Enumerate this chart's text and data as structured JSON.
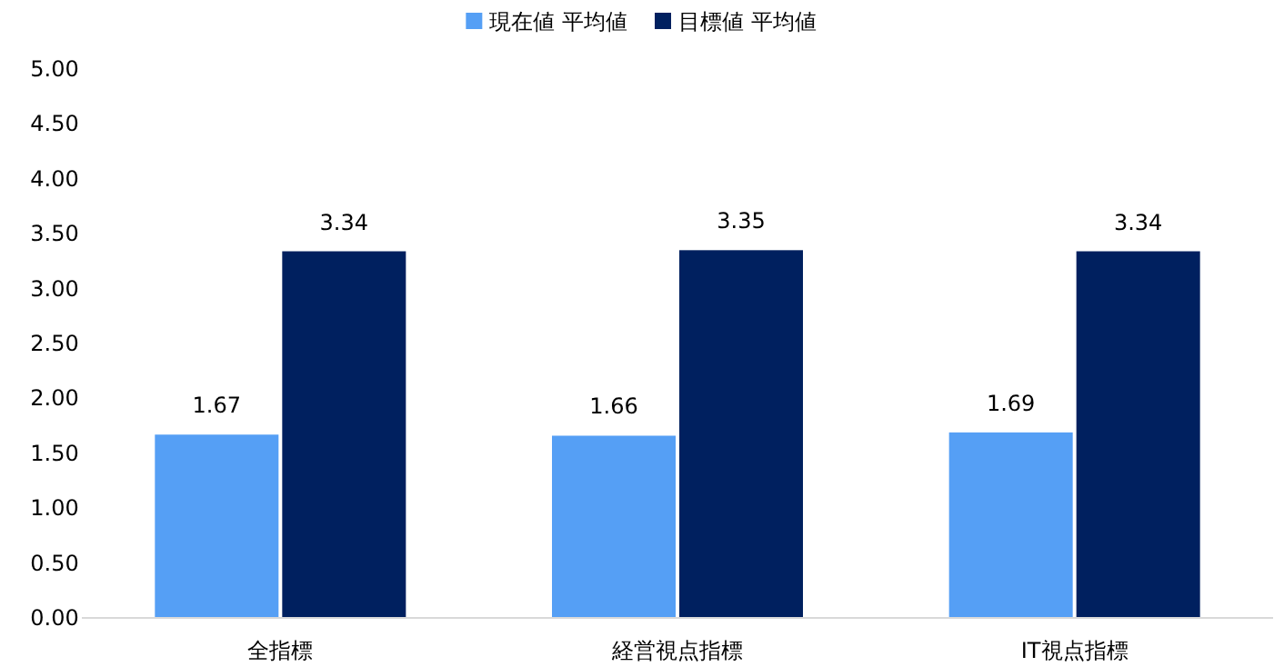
{
  "chart_data": {
    "type": "bar",
    "categories": [
      "全指標",
      "経営視点指標",
      "IT視点指標"
    ],
    "series": [
      {
        "name": "現在値 平均値",
        "color": "#559ff5",
        "values": [
          1.67,
          1.66,
          1.69
        ]
      },
      {
        "name": "目標値 平均値",
        "color": "#00205f",
        "values": [
          3.34,
          3.35,
          3.34
        ]
      }
    ],
    "ylim": [
      0,
      5
    ],
    "yticks": [
      {
        "value": 0,
        "label": "0.00"
      },
      {
        "value": 0.5,
        "label": "0.50"
      },
      {
        "value": 1,
        "label": "1.00"
      },
      {
        "value": 1.5,
        "label": "1.50"
      },
      {
        "value": 2,
        "label": "2.00"
      },
      {
        "value": 2.5,
        "label": "2.50"
      },
      {
        "value": 3,
        "label": "3.00"
      },
      {
        "value": 3.5,
        "label": "3.50"
      },
      {
        "value": 4,
        "label": "4.00"
      },
      {
        "value": 4.5,
        "label": "4.50"
      },
      {
        "value": 5,
        "label": "5.00"
      }
    ],
    "data_labels": true,
    "legend": "top"
  }
}
